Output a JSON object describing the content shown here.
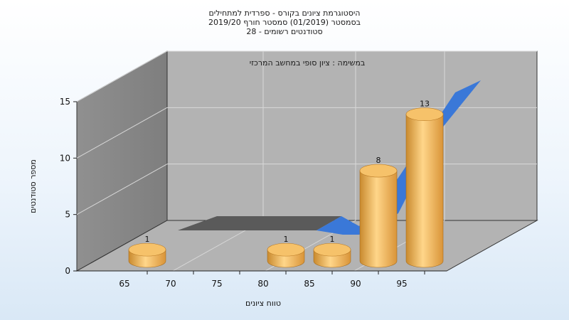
{
  "chart_data": {
    "type": "bar",
    "title_lines": [
      "היסטוגרמת ציונים בקורס - ספרדית למתחילים",
      "בסמסטר  (01/2019)  סמסטר חורף 2019/20",
      "סטודנטים רשומים - 28"
    ],
    "subtitle": "במשימה : ציון סופי במחשב המרכזי",
    "xlabel": "טווח ציונים",
    "ylabel": "מספר סטודנטים",
    "x_ticks": [
      "65",
      "70",
      "75",
      "80",
      "85",
      "90",
      "95"
    ],
    "y_ticks": [
      "0",
      "5",
      "10",
      "15"
    ],
    "ylim": [
      0,
      15
    ],
    "categories": [
      "65",
      "70",
      "75",
      "80",
      "85",
      "90",
      "95"
    ],
    "values": [
      1,
      0,
      0,
      1,
      1,
      8,
      13
    ],
    "data_labels": [
      "1",
      "",
      "",
      "1",
      "1",
      "8",
      "13"
    ],
    "series_type": "cylinder-3d",
    "bar_color": "#f0b860",
    "back_series": {
      "type": "area-3d",
      "values": [
        0,
        0,
        0,
        0,
        0,
        2,
        12
      ],
      "color_low": "#5a5a5a",
      "color_high": "#3a78d8"
    },
    "grid": true
  }
}
